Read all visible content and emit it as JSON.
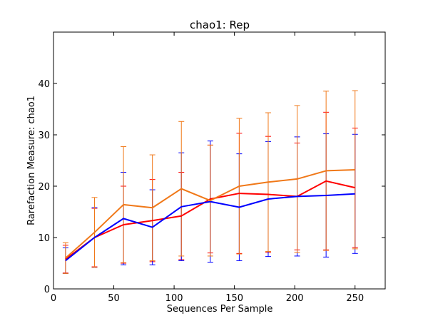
{
  "chart_data": {
    "type": "line",
    "title": "chao1: Rep",
    "xlabel": "Sequences Per Sample",
    "ylabel": "Rarefaction Measure: chao1",
    "xlim": [
      0,
      275
    ],
    "ylim": [
      0,
      50
    ],
    "xticks": [
      0,
      50,
      100,
      150,
      200,
      250
    ],
    "yticks": [
      0,
      10,
      20,
      30,
      40
    ],
    "grid": false,
    "x": [
      10,
      34,
      58,
      82,
      106,
      130,
      154,
      178,
      202,
      226,
      250
    ],
    "series": [
      {
        "color": "#ff0000",
        "values": [
          5.8,
          10.0,
          12.5,
          13.3,
          14.2,
          17.5,
          18.6,
          18.4,
          18.0,
          21.0,
          19.7
        ],
        "errors": [
          2.7,
          5.7,
          7.5,
          8.0,
          8.5,
          10.5,
          11.7,
          11.3,
          10.4,
          13.4,
          11.6
        ]
      },
      {
        "color": "#0000ff",
        "values": [
          5.5,
          10.0,
          13.7,
          12.0,
          16.0,
          17.0,
          15.9,
          17.5,
          18.0,
          18.2,
          18.5
        ],
        "errors": [
          2.5,
          5.8,
          9.0,
          7.3,
          10.5,
          11.8,
          10.4,
          11.2,
          11.6,
          12.0,
          11.6
        ]
      },
      {
        "color": "#f07818",
        "values": [
          6.0,
          11.0,
          16.4,
          15.8,
          19.5,
          17.2,
          20.0,
          20.8,
          21.4,
          23.0,
          23.2
        ],
        "errors": [
          3.0,
          6.8,
          11.3,
          10.3,
          13.1,
          10.8,
          13.2,
          13.5,
          14.3,
          15.5,
          15.4
        ]
      }
    ]
  }
}
